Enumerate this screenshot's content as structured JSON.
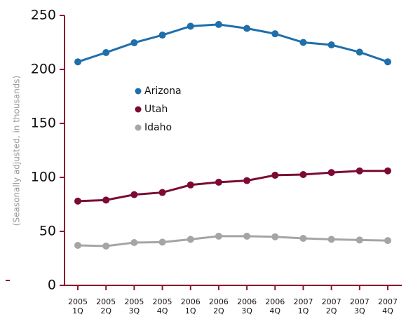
{
  "chart_data": {
    "type": "line",
    "y_label": "(Seasonally adjusted, in thousands)",
    "categories": [
      [
        "2005",
        "1Q"
      ],
      [
        "2005",
        "2Q"
      ],
      [
        "2005",
        "3Q"
      ],
      [
        "2005",
        "4Q"
      ],
      [
        "2006",
        "1Q"
      ],
      [
        "2006",
        "2Q"
      ],
      [
        "2006",
        "3Q"
      ],
      [
        "2006",
        "4Q"
      ],
      [
        "2007",
        "1Q"
      ],
      [
        "2007",
        "2Q"
      ],
      [
        "2007",
        "3Q"
      ],
      [
        "2007",
        "4Q"
      ]
    ],
    "series": [
      {
        "name": "Arizona",
        "color": "#1f6fab",
        "values": [
          207,
          215.6,
          224.7,
          231.8,
          240,
          241.6,
          238,
          233,
          225,
          222.7,
          216,
          207
        ]
      },
      {
        "name": "Utah",
        "color": "#7b0a35",
        "values": [
          78,
          79,
          84,
          86,
          93,
          95.5,
          97,
          102,
          102.6,
          104.5,
          106,
          106
        ]
      },
      {
        "name": "Idaho",
        "color": "#a5a5a5",
        "values": [
          37,
          36.4,
          39.6,
          40,
          42.6,
          45.5,
          45.5,
          45,
          43.5,
          42.6,
          42,
          41.5
        ]
      }
    ],
    "ylim": [
      0,
      250
    ],
    "yticks": [
      0,
      50,
      100,
      150,
      200,
      250
    ],
    "axis_color": "#8b1a2b"
  }
}
